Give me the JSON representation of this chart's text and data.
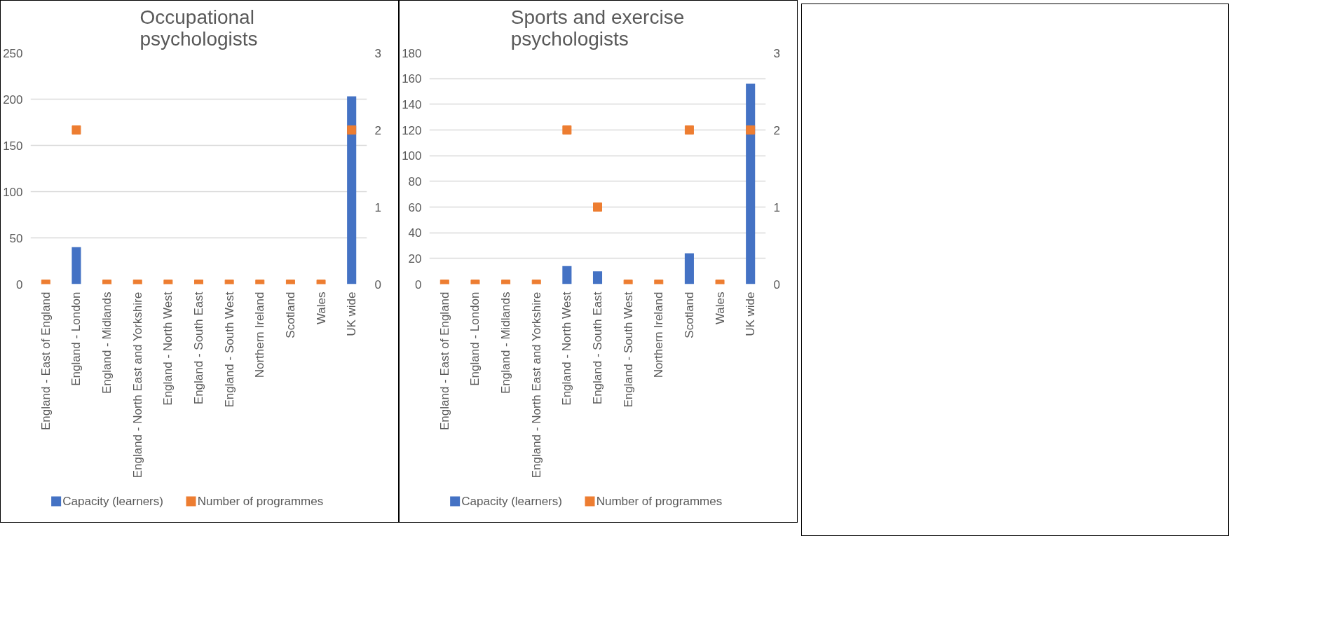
{
  "chart_data": [
    {
      "type": "bar",
      "title": "Occupational\npsychologists",
      "categories": [
        "England - East of England",
        "England - London",
        "England - Midlands",
        "England - North East and Yorkshire",
        "England - North West",
        "England - South East",
        "England - South West",
        "Northern Ireland",
        "Scotland",
        "Wales",
        "UK wide"
      ],
      "series": [
        {
          "name": "Capacity (learners)",
          "color": "#4472c4",
          "values": [
            0,
            40,
            0,
            0,
            0,
            0,
            0,
            0,
            0,
            0,
            203
          ]
        },
        {
          "name": "Number of programmes",
          "type": "scatter",
          "marker": "square",
          "axis": "y2",
          "color": "#ed7d31",
          "values": [
            0,
            2,
            0,
            0,
            0,
            0,
            0,
            0,
            0,
            0,
            2
          ]
        }
      ],
      "ylim": [
        0,
        250
      ],
      "yticks": [
        0,
        50,
        100,
        150,
        200,
        250
      ],
      "y2lim": [
        0,
        3
      ],
      "y2ticks": [
        0,
        1,
        2,
        3
      ],
      "grid": "y",
      "legend": "bottom"
    },
    {
      "type": "bar",
      "title": "Sports and exercise\npsychologists",
      "categories": [
        "England - East of England",
        "England - London",
        "England - Midlands",
        "England - North East and Yorkshire",
        "England - North West",
        "England - South East",
        "England - South West",
        "Northern Ireland",
        "Scotland",
        "Wales",
        "UK wide"
      ],
      "series": [
        {
          "name": "Capacity (learners)",
          "color": "#4472c4",
          "values": [
            0,
            0,
            0,
            0,
            14,
            10,
            0,
            0,
            24,
            0,
            156
          ]
        },
        {
          "name": "Number of programmes",
          "type": "scatter",
          "marker": "square",
          "axis": "y2",
          "color": "#ed7d31",
          "values": [
            0,
            0,
            0,
            0,
            2,
            1,
            0,
            0,
            2,
            0,
            2
          ]
        }
      ],
      "ylim": [
        0,
        180
      ],
      "yticks": [
        0,
        20,
        40,
        60,
        80,
        100,
        120,
        140,
        160,
        180
      ],
      "y2lim": [
        0,
        3
      ],
      "y2ticks": [
        0,
        1,
        2,
        3
      ],
      "grid": "y",
      "legend": "bottom"
    }
  ]
}
